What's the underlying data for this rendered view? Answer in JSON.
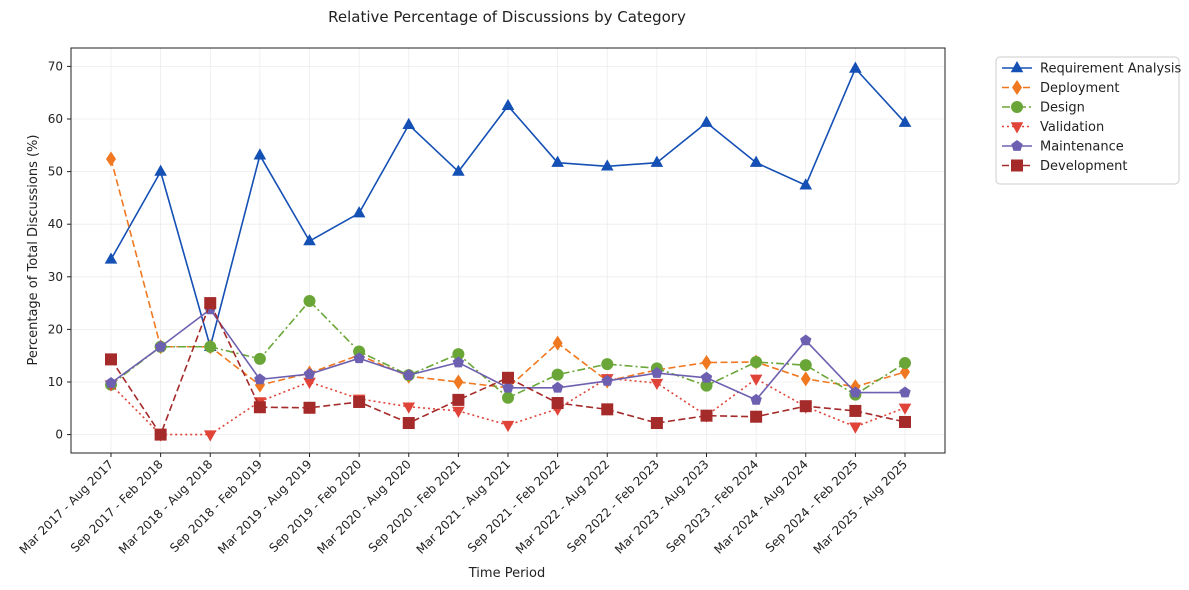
{
  "chart_data": {
    "type": "line",
    "title": "Relative Percentage of Discussions by Category",
    "xlabel": "Time Period",
    "ylabel": "Percentage of Total Discussions (%)",
    "ylim": [
      -3.5,
      73.5
    ],
    "yticks": [
      0,
      10,
      20,
      30,
      40,
      50,
      60,
      70
    ],
    "grid": true,
    "legend_position": "outside-top-right",
    "categories": [
      "Mar 2017 - Aug 2017",
      "Sep 2017 - Feb 2018",
      "Mar 2018 - Aug 2018",
      "Sep 2018 - Feb 2019",
      "Mar 2019 - Aug 2019",
      "Sep 2019 - Feb 2020",
      "Mar 2020 - Aug 2020",
      "Sep 2020 - Feb 2021",
      "Mar 2021 - Aug 2021",
      "Sep 2021 - Feb 2022",
      "Mar 2022 - Aug 2022",
      "Sep 2022 - Feb 2023",
      "Mar 2023 - Aug 2023",
      "Sep 2023 - Feb 2024",
      "Mar 2024 - Aug 2024",
      "Sep 2024 - Feb 2025",
      "Mar 2025 - Aug 2025"
    ],
    "series": [
      {
        "name": "Requirement Analysis",
        "color": "#1550b4",
        "dash": "solid",
        "marker": "triangle-up",
        "values": [
          33.3,
          50.0,
          16.7,
          53.1,
          36.8,
          42.1,
          58.9,
          50.0,
          62.5,
          51.7,
          51.0,
          51.7,
          59.3,
          51.7,
          47.4,
          69.6,
          59.3
        ]
      },
      {
        "name": "Deployment",
        "color": "#f07820",
        "dash": "dashed",
        "marker": "diamond",
        "values": [
          52.4,
          16.7,
          16.7,
          9.4,
          11.7,
          15.1,
          11.1,
          10.0,
          8.9,
          17.4,
          10.2,
          12.3,
          13.7,
          13.8,
          10.6,
          9.1,
          11.9
        ]
      },
      {
        "name": "Design",
        "color": "#6aa637",
        "dash": "dashdot",
        "marker": "circle",
        "values": [
          9.5,
          16.7,
          16.7,
          14.4,
          25.4,
          15.8,
          11.3,
          15.3,
          7.0,
          11.4,
          13.4,
          12.6,
          9.3,
          13.8,
          13.2,
          7.6,
          13.6
        ]
      },
      {
        "name": "Validation",
        "color": "#e04438",
        "dash": "dotted",
        "marker": "triangle-down",
        "values": [
          9.5,
          0.0,
          0.0,
          6.3,
          10.0,
          6.8,
          5.3,
          4.5,
          1.8,
          4.9,
          10.7,
          9.8,
          3.6,
          10.6,
          5.3,
          1.5,
          5.1
        ]
      },
      {
        "name": "Maintenance",
        "color": "#6e60b0",
        "dash": "solid",
        "marker": "pentagon",
        "values": [
          9.8,
          16.7,
          23.8,
          10.5,
          11.5,
          14.5,
          11.3,
          13.7,
          8.9,
          8.9,
          10.2,
          11.7,
          10.8,
          6.6,
          17.9,
          8.0,
          8.0
        ]
      },
      {
        "name": "Development",
        "color": "#a52a2a",
        "dash": "dashed",
        "marker": "square",
        "values": [
          14.3,
          0.0,
          25.0,
          5.2,
          5.1,
          6.2,
          2.2,
          6.6,
          10.8,
          6.0,
          4.8,
          2.2,
          3.6,
          3.4,
          5.4,
          4.5,
          2.4
        ]
      }
    ]
  }
}
